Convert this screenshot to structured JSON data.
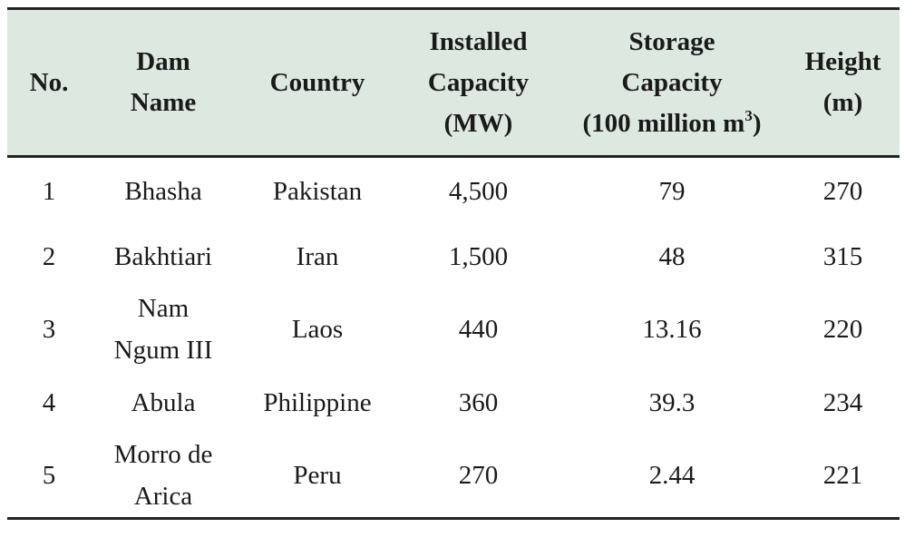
{
  "table": {
    "headers": [
      "No.",
      "Dam\nName",
      "Country",
      "Installed\nCapacity\n(MW)",
      "Storage\nCapacity\n(100 million m",
      "Height\n(m)"
    ],
    "storage_unit_sup": "3",
    "storage_unit_close": ")",
    "rows": [
      [
        "1",
        "Bhasha",
        "Pakistan",
        "4,500",
        "79",
        "270"
      ],
      [
        "2",
        "Bakhtiari",
        "Iran",
        "1,500",
        "48",
        "315"
      ],
      [
        "3",
        "Nam\nNgum III",
        "Laos",
        "440",
        "13.16",
        "220"
      ],
      [
        "4",
        "Abula",
        "Philippine",
        "360",
        "39.3",
        "234"
      ],
      [
        "5",
        "Morro de\nArica",
        "Peru",
        "270",
        "2.44",
        "221"
      ]
    ]
  }
}
